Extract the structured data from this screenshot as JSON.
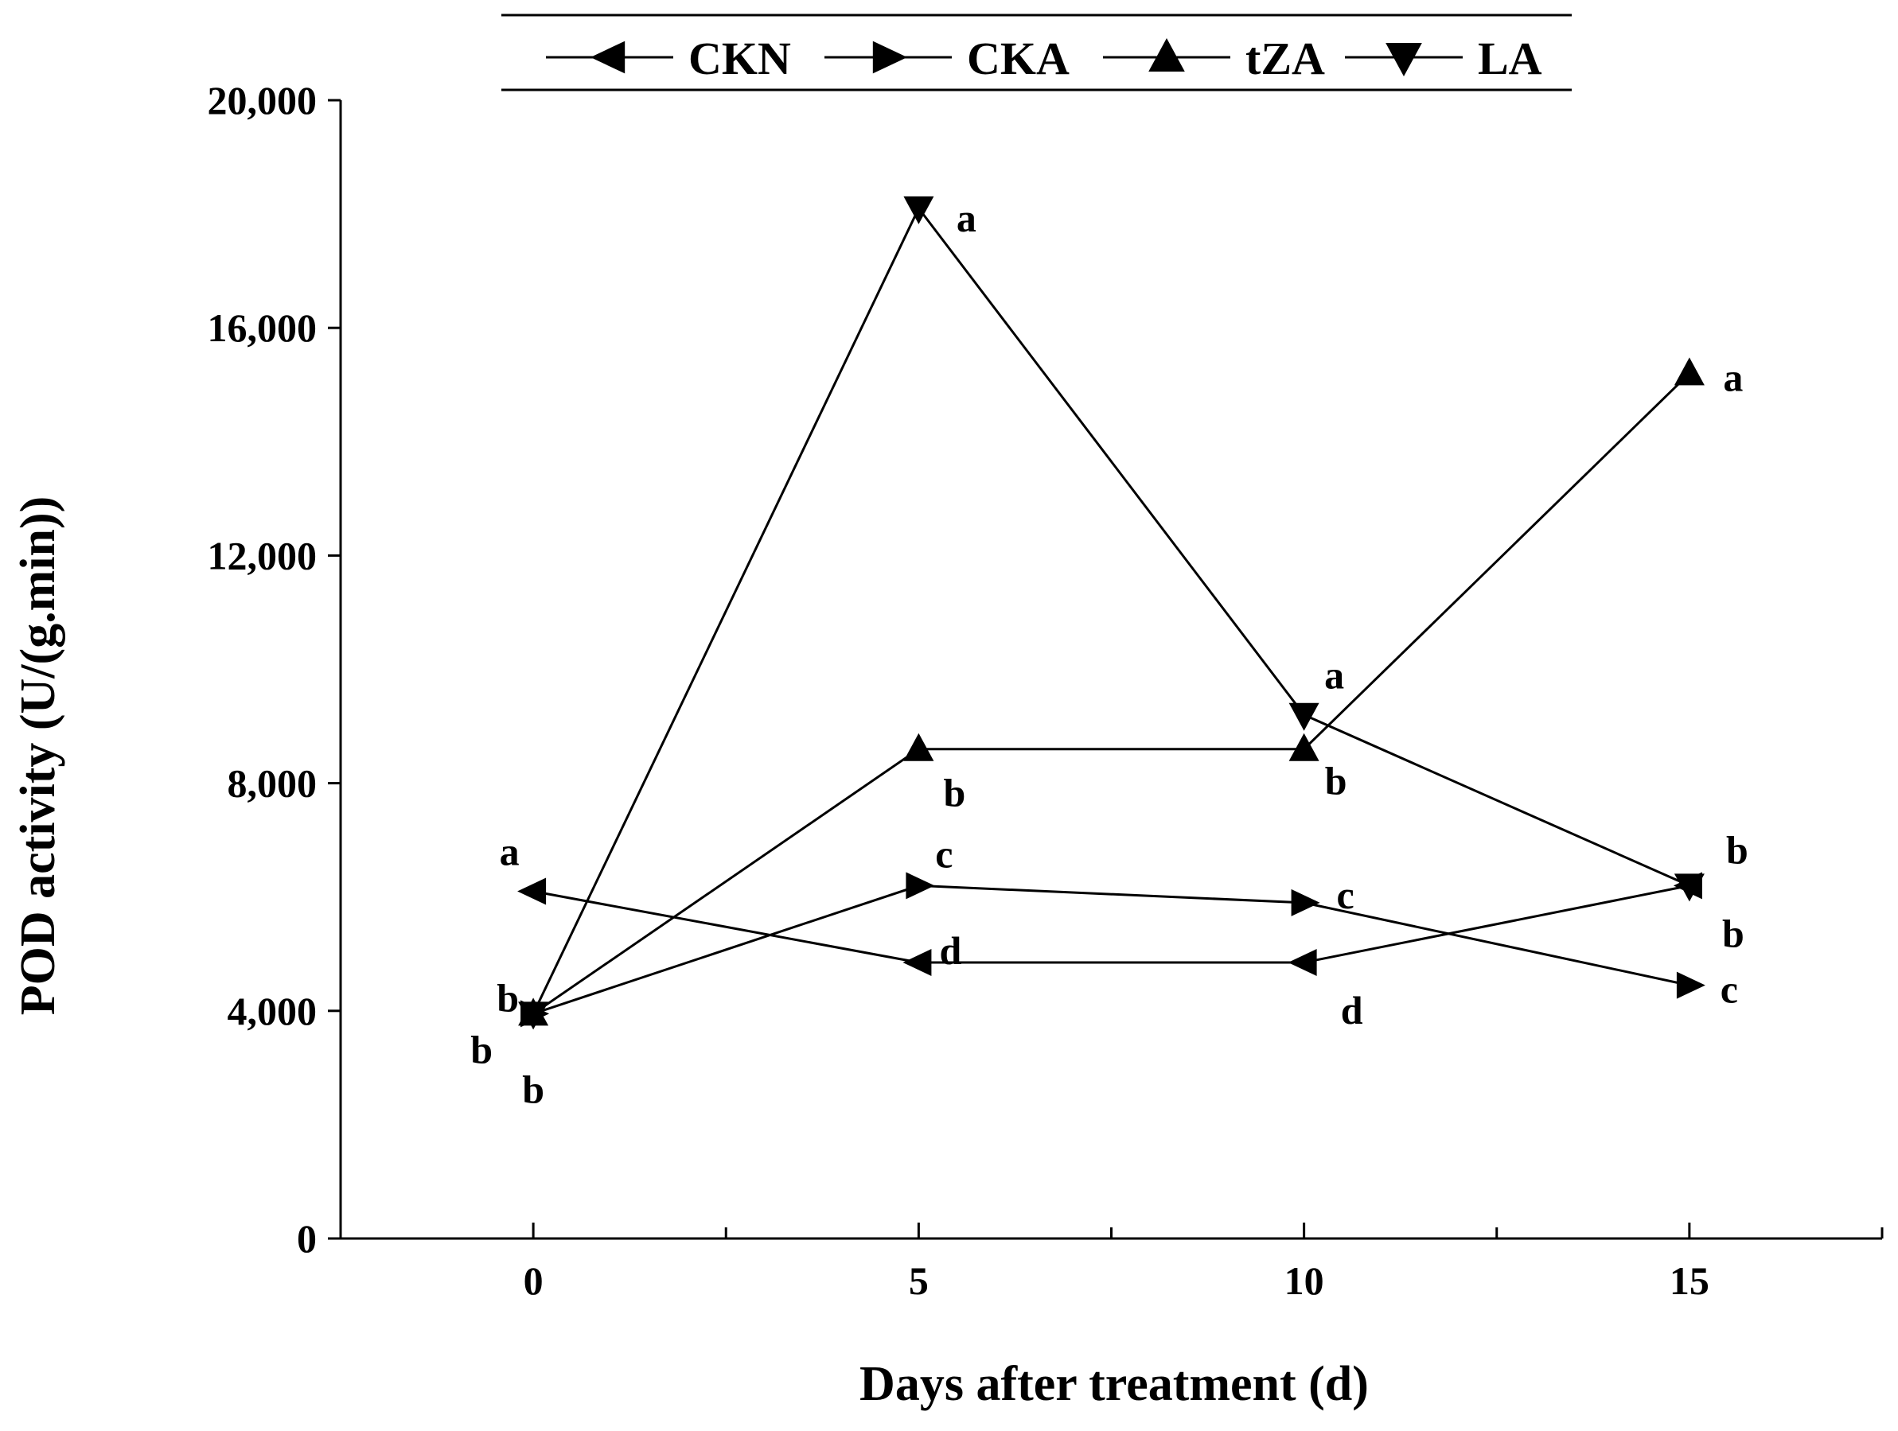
{
  "chart_data": {
    "type": "line",
    "xlabel": "Days after treatment (d)",
    "ylabel": "POD activity (U/(g.min))",
    "x": [
      0,
      5,
      10,
      15
    ],
    "xlim": [
      -2.5,
      17.5
    ],
    "ylim": [
      0,
      20000
    ],
    "xticks": [
      0,
      5,
      10,
      15
    ],
    "xtick_labels": [
      "0",
      "5",
      "10",
      "15"
    ],
    "yticks": [
      0,
      4000,
      8000,
      12000,
      16000,
      20000
    ],
    "ytick_labels": [
      "0",
      "4,000",
      "8,000",
      "12,000",
      "16,000",
      "20,000"
    ],
    "grid": false,
    "legend_position": "top",
    "series": [
      {
        "name": "CKN",
        "marker": "left-triangle",
        "values": [
          6100,
          4850,
          4850,
          6200
        ],
        "labels": [
          "a",
          "d",
          "d",
          "b"
        ]
      },
      {
        "name": "CKA",
        "marker": "right-triangle",
        "values": [
          3950,
          6200,
          5900,
          4450
        ],
        "labels": [
          "b",
          "c",
          "c",
          "c"
        ]
      },
      {
        "name": "tZA",
        "marker": "up-triangle",
        "values": [
          3950,
          8600,
          8600,
          15200
        ],
        "labels": [
          "b",
          "b",
          "b",
          "a"
        ]
      },
      {
        "name": "LA",
        "marker": "down-triangle",
        "values": [
          3950,
          18100,
          9200,
          6200
        ],
        "labels": [
          "b",
          "a",
          "a",
          "b"
        ]
      }
    ]
  }
}
